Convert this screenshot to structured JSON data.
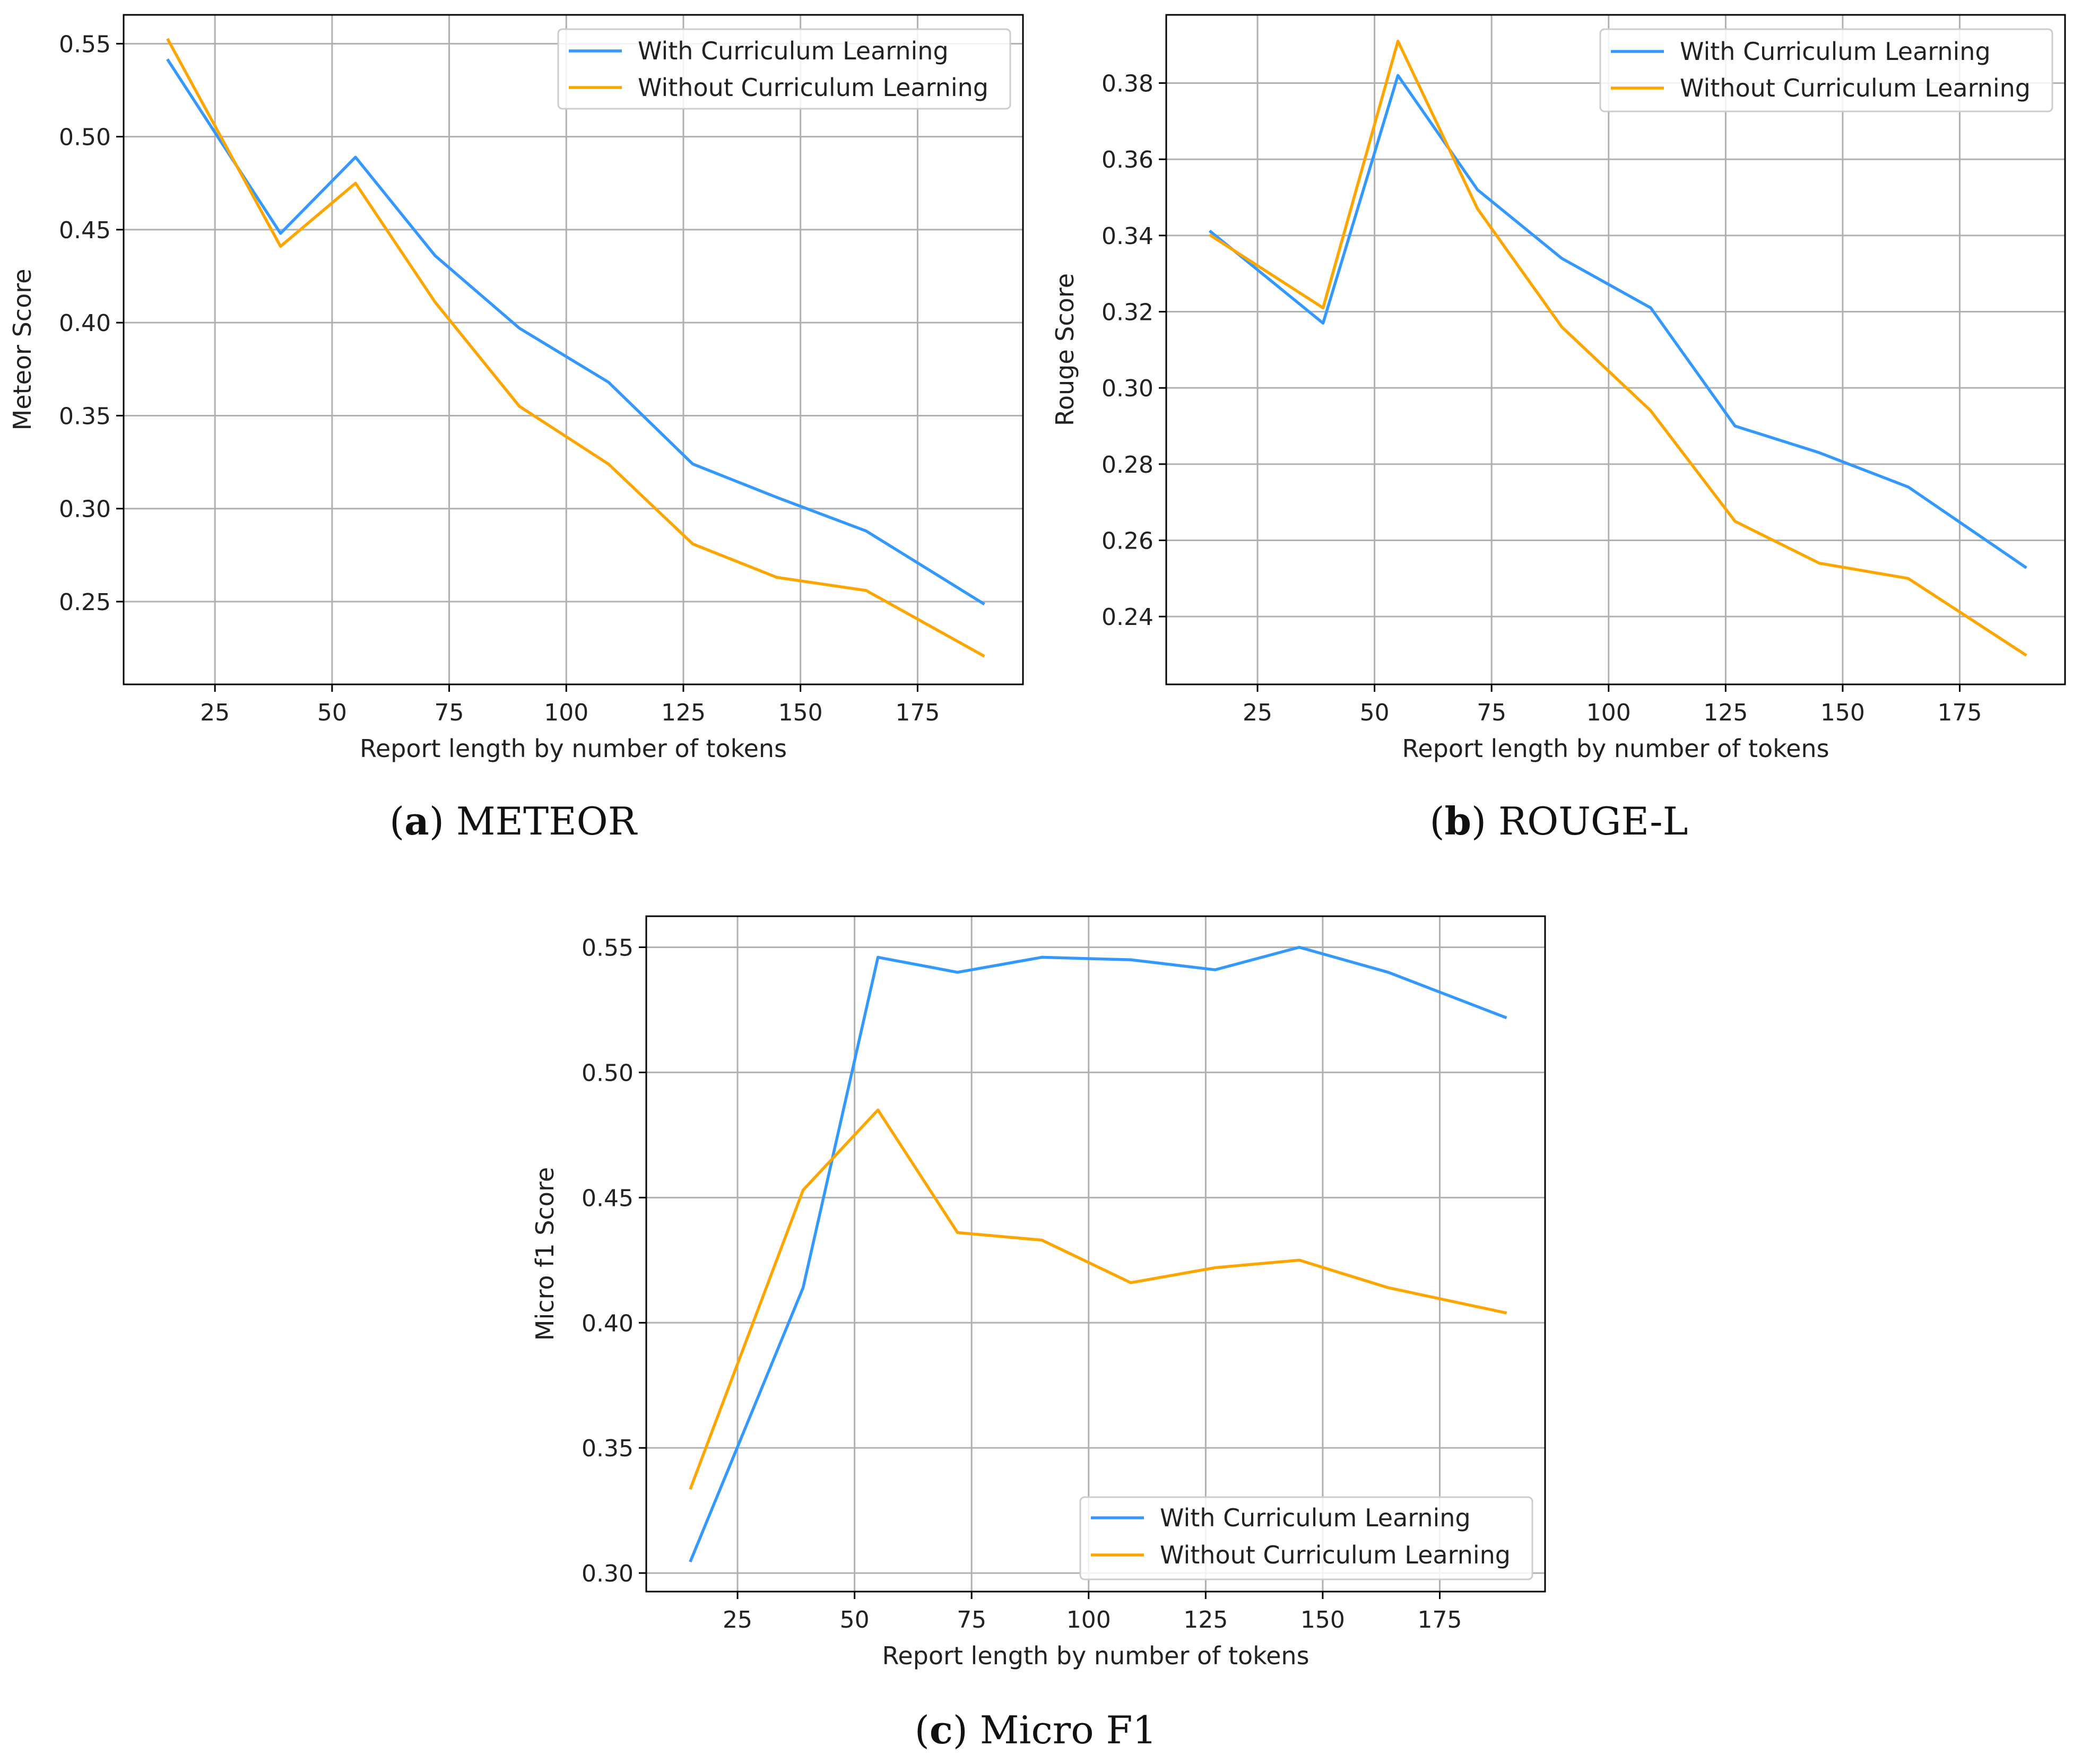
{
  "colors": {
    "with": "#3399ff",
    "without": "#ffa500",
    "grid": "#b0b0b0",
    "axis": "#000000"
  },
  "legend_labels": {
    "with": "With Curriculum Learning",
    "without": "Without Curriculum Learning"
  },
  "captions": [
    {
      "letter": "a",
      "text": "METEOR"
    },
    {
      "letter": "b",
      "text": "ROUGE-L"
    },
    {
      "letter": "c",
      "text": "Micro F1"
    }
  ],
  "chart_data": [
    {
      "type": "line",
      "title": "",
      "xlabel": "Report length by number of tokens",
      "ylabel": "Meteor Score",
      "xlim": [
        5.5,
        197.5
      ],
      "ylim": [
        0.2055,
        0.5655
      ],
      "xticks": [
        25,
        50,
        75,
        100,
        125,
        150,
        175
      ],
      "yticks": [
        0.25,
        0.3,
        0.35,
        0.4,
        0.45,
        0.5,
        0.55
      ],
      "ytick_labels": [
        "0.25",
        "0.30",
        "0.35",
        "0.40",
        "0.45",
        "0.50",
        "0.55"
      ],
      "legend_position": "top-right",
      "grid": true,
      "series": [
        {
          "name": "With Curriculum Learning",
          "color_key": "with",
          "x": [
            15,
            39,
            55,
            72,
            90,
            109,
            127,
            145,
            164,
            189
          ],
          "y": [
            0.541,
            0.448,
            0.489,
            0.436,
            0.397,
            0.368,
            0.324,
            0.306,
            0.288,
            0.249
          ]
        },
        {
          "name": "Without Curriculum Learning",
          "color_key": "without",
          "x": [
            15,
            39,
            55,
            72,
            90,
            109,
            127,
            145,
            164,
            189
          ],
          "y": [
            0.552,
            0.441,
            0.475,
            0.411,
            0.355,
            0.324,
            0.281,
            0.263,
            0.256,
            0.221
          ]
        }
      ]
    },
    {
      "type": "line",
      "title": "",
      "xlabel": "Report length by number of tokens",
      "ylabel": "Rouge Score",
      "xlim": [
        5.5,
        197.5
      ],
      "ylim": [
        0.2222,
        0.3979
      ],
      "xticks": [
        25,
        50,
        75,
        100,
        125,
        150,
        175
      ],
      "yticks": [
        0.24,
        0.26,
        0.28,
        0.3,
        0.32,
        0.34,
        0.36,
        0.38
      ],
      "ytick_labels": [
        "0.24",
        "0.26",
        "0.28",
        "0.30",
        "0.32",
        "0.34",
        "0.36",
        "0.38"
      ],
      "legend_position": "top-right",
      "grid": true,
      "series": [
        {
          "name": "With Curriculum Learning",
          "color_key": "with",
          "x": [
            15,
            39,
            55,
            72,
            90,
            109,
            127,
            145,
            164,
            189
          ],
          "y": [
            0.341,
            0.317,
            0.382,
            0.352,
            0.334,
            0.321,
            0.29,
            0.283,
            0.274,
            0.253
          ]
        },
        {
          "name": "Without Curriculum Learning",
          "color_key": "without",
          "x": [
            15,
            39,
            55,
            72,
            90,
            109,
            127,
            145,
            164,
            189
          ],
          "y": [
            0.34,
            0.321,
            0.391,
            0.347,
            0.316,
            0.294,
            0.265,
            0.254,
            0.25,
            0.23
          ]
        }
      ]
    },
    {
      "type": "line",
      "title": "",
      "xlabel": "Report length by number of tokens",
      "ylabel": "Micro f1 Score",
      "xlim": [
        5.5,
        197.5
      ],
      "ylim": [
        0.2926,
        0.5624
      ],
      "xticks": [
        25,
        50,
        75,
        100,
        125,
        150,
        175
      ],
      "yticks": [
        0.3,
        0.35,
        0.4,
        0.45,
        0.5,
        0.55
      ],
      "ytick_labels": [
        "0.30",
        "0.35",
        "0.40",
        "0.45",
        "0.50",
        "0.55"
      ],
      "legend_position": "bottom-right",
      "grid": true,
      "series": [
        {
          "name": "With Curriculum Learning",
          "color_key": "with",
          "x": [
            15,
            39,
            55,
            72,
            90,
            109,
            127,
            145,
            164,
            189
          ],
          "y": [
            0.305,
            0.414,
            0.546,
            0.54,
            0.546,
            0.545,
            0.541,
            0.55,
            0.54,
            0.522
          ]
        },
        {
          "name": "Without Curriculum Learning",
          "color_key": "without",
          "x": [
            15,
            39,
            55,
            72,
            90,
            109,
            127,
            145,
            164,
            189
          ],
          "y": [
            0.334,
            0.453,
            0.485,
            0.436,
            0.433,
            0.416,
            0.422,
            0.425,
            0.414,
            0.404
          ]
        }
      ]
    }
  ]
}
